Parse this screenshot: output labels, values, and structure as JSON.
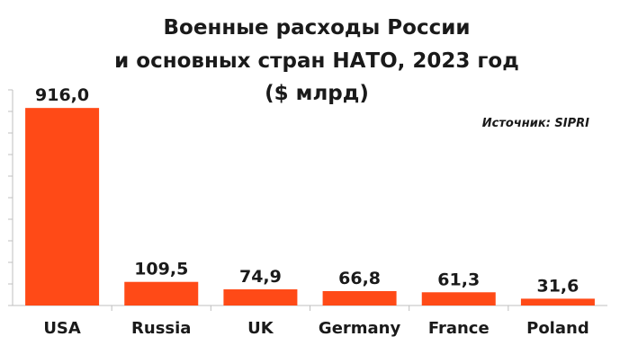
{
  "chart_data": {
    "type": "bar",
    "title_lines": [
      "Военные расходы России",
      "и основных стран НАТО, 2023 год",
      "($ млрд)"
    ],
    "source": "Источник: SIPRI",
    "categories": [
      "USA",
      "Russia",
      "UK",
      "Germany",
      "France",
      "Poland"
    ],
    "values": [
      916.0,
      109.5,
      74.9,
      66.8,
      61.3,
      31.6
    ],
    "value_labels": [
      "916,0",
      "109,5",
      "74,9",
      "66,8",
      "61,3",
      "31,6"
    ],
    "ylim": [
      0,
      1000
    ],
    "yticks": [
      0,
      100,
      200,
      300,
      400,
      500,
      600,
      700,
      800,
      900,
      1000
    ],
    "grid": false,
    "legend": "none",
    "colors": {
      "bar": "#ff4a17",
      "axis": "#bfbfbf",
      "text": "#1a1a1a"
    }
  }
}
